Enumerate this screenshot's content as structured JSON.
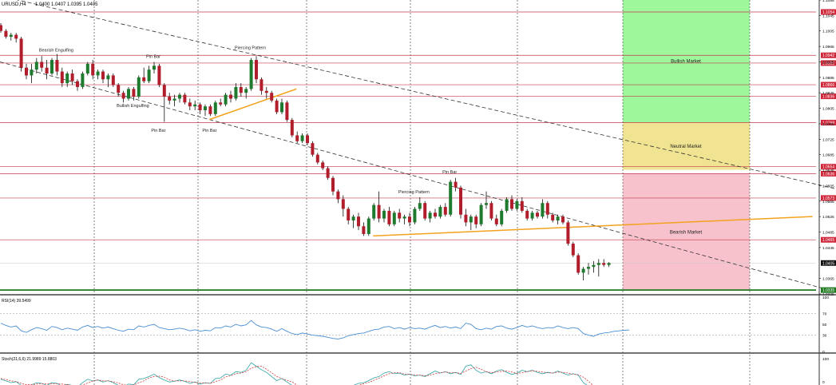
{
  "header": {
    "symbol": "URUSD,H4",
    "ohlc": "1.0400 1.0407 1.0395 1.0405"
  },
  "zones": [
    {
      "label": "Bullish Market",
      "top": 1.1085,
      "bottom": 1.0768,
      "color": "#9ef79a"
    },
    {
      "label": "Neutral Market",
      "top": 1.0768,
      "bottom": 1.0646,
      "color": "#f0e492"
    },
    {
      "label": "Bearish Market",
      "top": 1.0636,
      "bottom": 1.0335,
      "color": "#f7c2cc"
    }
  ],
  "level_labels": [
    {
      "value": 1.1054,
      "label": "1.1054"
    },
    {
      "value": 1.0942,
      "label": "1.0942"
    },
    {
      "value": 1.0922,
      "label": "1.0922"
    },
    {
      "value": 1.0866,
      "label": "1.0866"
    },
    {
      "value": 1.0836,
      "label": "1.0836"
    },
    {
      "value": 1.0768,
      "label": "1.0768"
    },
    {
      "value": 1.0654,
      "label": "1.0654"
    },
    {
      "value": 1.0636,
      "label": "1.0636"
    },
    {
      "value": 1.0573,
      "label": "1.0573"
    },
    {
      "value": 1.0465,
      "label": "1.0465"
    },
    {
      "value": 1.0405,
      "label": "1.0405"
    },
    {
      "value": 1.0335,
      "label": "1.0335"
    }
  ],
  "price_ticks": [
    "1.1085",
    "1.1045",
    "1.1005",
    "1.0965",
    "1.0925",
    "1.0885",
    "1.0845",
    "1.0805",
    "1.0765",
    "1.0725",
    "1.0685",
    "1.0645",
    "1.0605",
    "1.0565",
    "1.0525",
    "1.0485",
    "1.0445",
    "1.0365",
    "1.0325"
  ],
  "pattern_labels": [
    {
      "text": "Bearish Engulfing",
      "bar": 11,
      "price": 1.0952
    },
    {
      "text": "Pin Bar",
      "bar": 30,
      "price": 1.0935
    },
    {
      "text": "Piercing Pattern",
      "bar": 49,
      "price": 1.0958
    },
    {
      "text": "Bullish Engulfing",
      "bar": 26,
      "price": 1.0808
    },
    {
      "text": "Pin Bar",
      "bar": 31,
      "price": 1.0744
    },
    {
      "text": "Pin Bar",
      "bar": 41,
      "price": 1.0744
    },
    {
      "text": "Pin Bar",
      "bar": 88,
      "price": 1.0637
    },
    {
      "text": "Piercing Pattern",
      "bar": 81,
      "price": 1.0585
    }
  ],
  "rsi": {
    "label": "RSI(14) 39.5499",
    "ticks": [
      "100",
      "70",
      "50",
      "30",
      "0"
    ],
    "levels": [
      70,
      30
    ]
  },
  "stoch": {
    "label": "Stoch(21,6,6) 21.9989 15.8803",
    "ticks": [
      "100",
      "0"
    ]
  },
  "chart_data": {
    "type": "candlestick",
    "title": "URUSD,H4 1.0400 1.0407 1.0395 1.0405",
    "ylim": [
      1.0325,
      1.1085
    ],
    "candles": [
      [
        1.102,
        1.1025,
        1.1,
        1.1005
      ],
      [
        1.1005,
        1.101,
        1.0985,
        1.099
      ],
      [
        1.099,
        1.1,
        1.098,
        1.0995
      ],
      [
        1.0995,
        1.1,
        1.0975,
        1.0985
      ],
      [
        1.0985,
        1.099,
        1.09,
        1.091
      ],
      [
        1.091,
        1.092,
        1.088,
        1.089
      ],
      [
        1.089,
        1.092,
        1.087,
        1.0905
      ],
      [
        1.0905,
        1.0935,
        1.0895,
        1.0925
      ],
      [
        1.0925,
        1.094,
        1.09,
        1.091
      ],
      [
        1.091,
        1.093,
        1.088,
        1.0895
      ],
      [
        1.0895,
        1.0935,
        1.089,
        1.093
      ],
      [
        1.093,
        1.0945,
        1.089,
        1.09
      ],
      [
        1.09,
        1.091,
        1.086,
        1.087
      ],
      [
        1.087,
        1.09,
        1.086,
        1.0895
      ],
      [
        1.0895,
        1.0905,
        1.0865,
        1.0875
      ],
      [
        1.0875,
        1.088,
        1.085,
        1.086
      ],
      [
        1.086,
        1.09,
        1.0855,
        1.0895
      ],
      [
        1.0895,
        1.0925,
        1.089,
        1.092
      ],
      [
        1.092,
        1.093,
        1.088,
        1.089
      ],
      [
        1.089,
        1.0905,
        1.088,
        1.09
      ],
      [
        1.09,
        1.0905,
        1.087,
        1.088
      ],
      [
        1.088,
        1.0895,
        1.086,
        1.089
      ],
      [
        1.089,
        1.0895,
        1.086,
        1.0865
      ],
      [
        1.0865,
        1.087,
        1.0835,
        1.0845
      ],
      [
        1.0845,
        1.085,
        1.082,
        1.083
      ],
      [
        1.083,
        1.086,
        1.0825,
        1.0855
      ],
      [
        1.0855,
        1.086,
        1.0825,
        1.0835
      ],
      [
        1.0835,
        1.089,
        1.083,
        1.0885
      ],
      [
        1.0885,
        1.091,
        1.087,
        1.0875
      ],
      [
        1.0875,
        1.0915,
        1.087,
        1.0905
      ],
      [
        1.0905,
        1.0925,
        1.0895,
        1.0915
      ],
      [
        1.0915,
        1.092,
        1.086,
        1.0865
      ],
      [
        1.0865,
        1.087,
        1.077,
        1.0835
      ],
      [
        1.0835,
        1.0845,
        1.0815,
        1.0825
      ],
      [
        1.0825,
        1.084,
        1.081,
        1.083
      ],
      [
        1.083,
        1.0845,
        1.082,
        1.084
      ],
      [
        1.084,
        1.0845,
        1.0815,
        1.082
      ],
      [
        1.082,
        1.083,
        1.08,
        1.081
      ],
      [
        1.081,
        1.0825,
        1.08,
        1.0815
      ],
      [
        1.0815,
        1.082,
        1.079,
        1.08
      ],
      [
        1.08,
        1.0815,
        1.0785,
        1.081
      ],
      [
        1.081,
        1.0815,
        1.0785,
        1.079
      ],
      [
        1.079,
        1.0825,
        1.0785,
        1.082
      ],
      [
        1.082,
        1.083,
        1.081,
        1.0815
      ],
      [
        1.0815,
        1.0845,
        1.081,
        1.084
      ],
      [
        1.084,
        1.085,
        1.082,
        1.083
      ],
      [
        1.083,
        1.087,
        1.0825,
        1.086
      ],
      [
        1.086,
        1.087,
        1.0835,
        1.0845
      ],
      [
        1.0845,
        1.086,
        1.083,
        1.0855
      ],
      [
        1.0855,
        1.0935,
        1.085,
        1.093
      ],
      [
        1.093,
        1.094,
        1.087,
        1.088
      ],
      [
        1.088,
        1.0885,
        1.084,
        1.085
      ],
      [
        1.085,
        1.086,
        1.083,
        1.0845
      ],
      [
        1.0845,
        1.085,
        1.082,
        1.0825
      ],
      [
        1.0825,
        1.083,
        1.079,
        1.0795
      ],
      [
        1.0795,
        1.083,
        1.079,
        1.082
      ],
      [
        1.082,
        1.0825,
        1.077,
        1.0775
      ],
      [
        1.0775,
        1.078,
        1.073,
        1.0735
      ],
      [
        1.0735,
        1.0745,
        1.0715,
        1.072
      ],
      [
        1.072,
        1.074,
        1.0715,
        1.0735
      ],
      [
        1.0735,
        1.074,
        1.071,
        1.0715
      ],
      [
        1.0715,
        1.072,
        1.068,
        1.0685
      ],
      [
        1.0685,
        1.069,
        1.066,
        1.0665
      ],
      [
        1.0665,
        1.067,
        1.0645,
        1.065
      ],
      [
        1.065,
        1.0655,
        1.062,
        1.0625
      ],
      [
        1.0625,
        1.063,
        1.058,
        1.059
      ],
      [
        1.059,
        1.0595,
        1.056,
        1.057
      ],
      [
        1.057,
        1.058,
        1.0525,
        1.0545
      ],
      [
        1.0545,
        1.055,
        1.0505,
        1.0515
      ],
      [
        1.0515,
        1.053,
        1.0495,
        1.0525
      ],
      [
        1.0525,
        1.0535,
        1.049,
        1.05
      ],
      [
        1.05,
        1.051,
        1.0475,
        1.048
      ],
      [
        1.048,
        1.0525,
        1.0475,
        1.052
      ],
      [
        1.052,
        1.056,
        1.0515,
        1.0555
      ],
      [
        1.0555,
        1.059,
        1.051,
        1.052
      ],
      [
        1.052,
        1.0545,
        1.051,
        1.054
      ],
      [
        1.054,
        1.055,
        1.05,
        1.0505
      ],
      [
        1.0505,
        1.054,
        1.05,
        1.0535
      ],
      [
        1.0535,
        1.0545,
        1.051,
        1.052
      ],
      [
        1.052,
        1.053,
        1.0505,
        1.0525
      ],
      [
        1.0525,
        1.0535,
        1.05,
        1.051
      ],
      [
        1.051,
        1.055,
        1.0505,
        1.0545
      ],
      [
        1.0545,
        1.0575,
        1.054,
        1.056
      ],
      [
        1.056,
        1.0565,
        1.0515,
        1.052
      ],
      [
        1.052,
        1.054,
        1.051,
        1.0535
      ],
      [
        1.0535,
        1.0545,
        1.052,
        1.0525
      ],
      [
        1.0525,
        1.0555,
        1.052,
        1.055
      ],
      [
        1.055,
        1.056,
        1.0525,
        1.053
      ],
      [
        1.053,
        1.062,
        1.0525,
        1.0615
      ],
      [
        1.0615,
        1.0625,
        1.059,
        1.06
      ],
      [
        1.06,
        1.0605,
        1.052,
        1.053
      ],
      [
        1.053,
        1.0545,
        1.05,
        1.051
      ],
      [
        1.051,
        1.053,
        1.049,
        1.0525
      ],
      [
        1.0525,
        1.053,
        1.0495,
        1.0505
      ],
      [
        1.0505,
        1.056,
        1.05,
        1.0555
      ],
      [
        1.0555,
        1.059,
        1.0545,
        1.056
      ],
      [
        1.056,
        1.0565,
        1.0515,
        1.052
      ],
      [
        1.052,
        1.053,
        1.05,
        1.0505
      ],
      [
        1.0505,
        1.0545,
        1.05,
        1.054
      ],
      [
        1.054,
        1.0575,
        1.0535,
        1.057
      ],
      [
        1.057,
        1.058,
        1.054,
        1.0545
      ],
      [
        1.0545,
        1.057,
        1.054,
        1.0565
      ],
      [
        1.0565,
        1.0575,
        1.0535,
        1.054
      ],
      [
        1.054,
        1.0545,
        1.0515,
        1.052
      ],
      [
        1.052,
        1.054,
        1.0515,
        1.0535
      ],
      [
        1.0535,
        1.054,
        1.052,
        1.0525
      ],
      [
        1.0525,
        1.057,
        1.052,
        1.056
      ],
      [
        1.056,
        1.0565,
        1.052,
        1.053
      ],
      [
        1.053,
        1.0535,
        1.051,
        1.0515
      ],
      [
        1.0515,
        1.053,
        1.0505,
        1.0525
      ],
      [
        1.0525,
        1.053,
        1.0505,
        1.051
      ],
      [
        1.051,
        1.0515,
        1.045,
        1.0455
      ],
      [
        1.0455,
        1.046,
        1.042,
        1.0425
      ],
      [
        1.0425,
        1.043,
        1.0375,
        1.038
      ],
      [
        1.038,
        1.0395,
        1.036,
        1.039
      ],
      [
        1.039,
        1.0405,
        1.0375,
        1.0395
      ],
      [
        1.0395,
        1.041,
        1.038,
        1.04
      ],
      [
        1.04,
        1.0415,
        1.037,
        1.0405
      ],
      [
        1.0405,
        1.0415,
        1.0395,
        1.04
      ],
      [
        1.04,
        1.0407,
        1.0395,
        1.0405
      ]
    ],
    "trendlines": [
      {
        "style": "dashed",
        "from": [
          -8,
          1.112
        ],
        "to": [
          174,
          1.0565
        ]
      },
      {
        "style": "dashed",
        "from": [
          0,
          1.0925
        ],
        "to": [
          165,
          1.0325
        ]
      },
      {
        "style": "solid",
        "color": "#f2a21c",
        "from": [
          41,
          1.0776
        ],
        "to": [
          58,
          1.0855
        ]
      },
      {
        "style": "solid",
        "color": "#f2a21c",
        "from": [
          73,
          1.0475
        ],
        "to": [
          159,
          1.0525
        ]
      }
    ],
    "rsi_values": [
      52,
      48,
      45,
      47,
      38,
      35,
      40,
      44,
      42,
      39,
      46,
      44,
      40,
      43,
      41,
      39,
      45,
      48,
      44,
      46,
      43,
      45,
      42,
      39,
      37,
      41,
      40,
      47,
      45,
      48,
      50,
      44,
      42,
      40,
      41,
      43,
      41,
      38,
      40,
      37,
      39,
      38,
      44,
      43,
      47,
      45,
      50,
      47,
      49,
      57,
      49,
      45,
      44,
      41,
      37,
      42,
      37,
      33,
      31,
      34,
      32,
      30,
      29,
      28,
      26,
      24,
      23,
      25,
      29,
      31,
      33,
      34,
      37,
      40,
      41,
      45,
      46,
      42,
      44,
      41,
      44,
      42,
      43,
      41,
      45,
      48,
      44,
      46,
      43,
      45,
      42,
      52,
      50,
      42,
      40,
      43,
      41,
      46,
      47,
      43,
      41,
      44,
      48,
      45,
      47,
      44,
      42,
      44,
      43,
      47,
      44,
      42,
      44,
      42,
      33,
      30,
      28,
      32,
      34,
      35,
      37,
      38,
      39,
      39.5
    ],
    "stoch_k": [
      40,
      35,
      30,
      33,
      22,
      18,
      24,
      30,
      28,
      22,
      30,
      28,
      20,
      25,
      22,
      18,
      30,
      40,
      35,
      38,
      32,
      36,
      30,
      22,
      18,
      26,
      24,
      40,
      42,
      48,
      55,
      45,
      38,
      32,
      34,
      38,
      34,
      28,
      32,
      26,
      30,
      28,
      42,
      44,
      55,
      52,
      62,
      60,
      66,
      88,
      78,
      68,
      60,
      48,
      36,
      42,
      32,
      22,
      16,
      20,
      16,
      12,
      10,
      9,
      8,
      6,
      6,
      10,
      16,
      22,
      28,
      30,
      36,
      44,
      48,
      58,
      62,
      56,
      58,
      52,
      55,
      50,
      52,
      48,
      56,
      64,
      58,
      62,
      56,
      60,
      54,
      78,
      82,
      66,
      58,
      62,
      56,
      64,
      68,
      60,
      54,
      58,
      66,
      62,
      66,
      60,
      56,
      60,
      58,
      64,
      58,
      52,
      56,
      52,
      30,
      20,
      14,
      16,
      18,
      20,
      22,
      22,
      22,
      22
    ],
    "stoch_d": [
      42,
      39,
      35,
      33,
      28,
      24,
      24,
      26,
      27,
      27,
      27,
      27,
      26,
      24,
      22,
      22,
      23,
      29,
      35,
      38,
      35,
      35,
      33,
      29,
      24,
      22,
      23,
      30,
      35,
      44,
      48,
      49,
      46,
      38,
      35,
      35,
      35,
      33,
      31,
      29,
      29,
      28,
      33,
      38,
      47,
      50,
      56,
      58,
      62,
      72,
      77,
      78,
      69,
      59,
      48,
      42,
      37,
      32,
      23,
      19,
      17,
      16,
      13,
      10,
      9,
      8,
      7,
      7,
      11,
      16,
      22,
      27,
      31,
      37,
      43,
      50,
      56,
      59,
      59,
      55,
      55,
      52,
      52,
      50,
      52,
      56,
      59,
      61,
      59,
      59,
      57,
      64,
      71,
      75,
      69,
      62,
      59,
      61,
      63,
      64,
      61,
      57,
      59,
      62,
      65,
      63,
      61,
      59,
      58,
      61,
      60,
      58,
      55,
      53,
      46,
      34,
      21,
      17,
      16,
      18,
      20,
      21,
      22,
      22
    ]
  }
}
